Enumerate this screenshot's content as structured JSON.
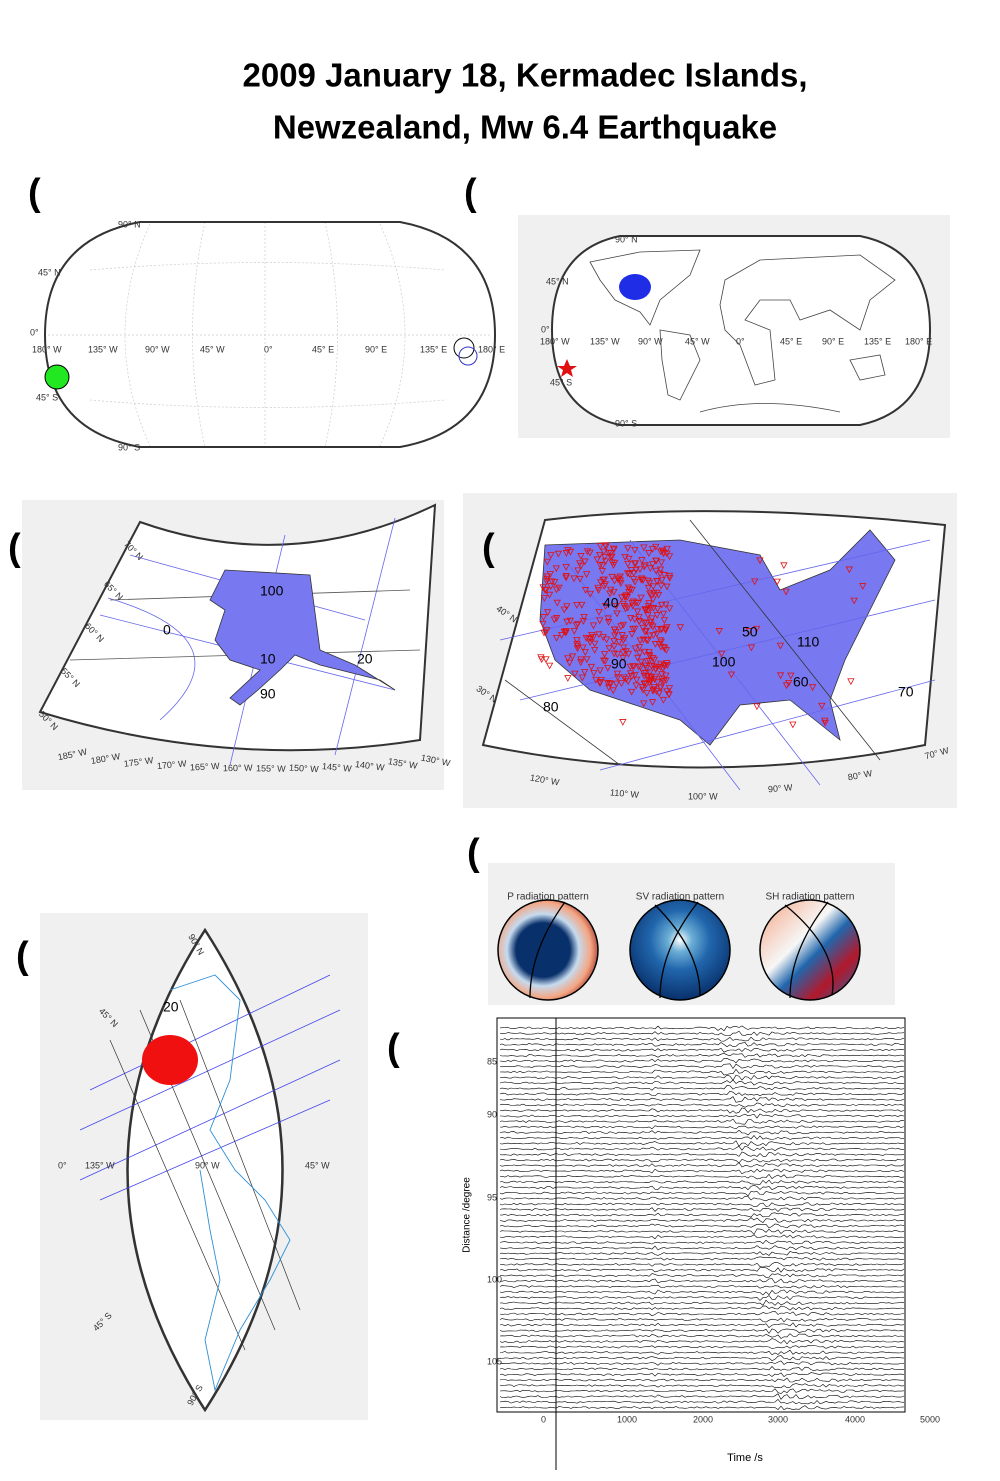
{
  "title": [
    "2009 January 18, Kermadec Islands,",
    "Newzealand, Mw 6.4 Earthquake"
  ],
  "panels": {
    "a": {
      "label": "(a)",
      "lat_labels": [
        "90° N",
        "45° N",
        "0°",
        "45° S",
        "90° S"
      ],
      "lon_labels": [
        "180° W",
        "135° W",
        "90° W",
        "45° W",
        "0°",
        "45° E",
        "90° E",
        "135° E",
        "180° E"
      ]
    },
    "b": {
      "label": "(b)",
      "lat_labels": [
        "90° N",
        "45° N",
        "0°",
        "45° S",
        "90° S"
      ],
      "lon_labels": [
        "180° W",
        "135° W",
        "90° W",
        "45° W",
        "0°",
        "45° E",
        "90° E",
        "135° E",
        "180° E"
      ]
    },
    "c": {
      "label": "(c)",
      "lat_labels": [
        "70° N",
        "65° N",
        "60° N",
        "55° N",
        "50° N"
      ],
      "lon_labels": [
        "185° W",
        "180° W",
        "175° W",
        "170° W",
        "165° W",
        "160° W",
        "155° W",
        "150° W",
        "145° W",
        "140° W",
        "135° W",
        "130° W"
      ],
      "contours": [
        "100",
        "0",
        "10",
        "90",
        "20"
      ]
    },
    "d": {
      "label": "(d)",
      "lat_labels": [
        "40° N",
        "30° N"
      ],
      "lon_labels": [
        "120° W",
        "110° W",
        "100° W",
        "90° W",
        "80° W",
        "70° W"
      ],
      "contours": [
        "40",
        "50",
        "110",
        "90",
        "100",
        "60",
        "80",
        "70"
      ]
    },
    "e": {
      "label": "(e)",
      "lat_labels": [
        "90° N",
        "45° N",
        "0°",
        "45° S",
        "90° S"
      ],
      "lon_labels": [
        "135° W",
        "90° W",
        "45° W"
      ],
      "contours": [
        "20"
      ]
    },
    "f": {
      "label": "(f)",
      "titles": [
        "P radiation pattern",
        "SV radiation pattern",
        "SH radiation pattern"
      ]
    },
    "g": {
      "label": "(g)",
      "yticks": [
        "85",
        "90",
        "95",
        "100",
        "105"
      ],
      "xticks": [
        "0",
        "1000",
        "2000",
        "3000",
        "4000",
        "5000"
      ],
      "xlabel": "Time /s",
      "ylabel": "Distance /degree"
    }
  }
}
